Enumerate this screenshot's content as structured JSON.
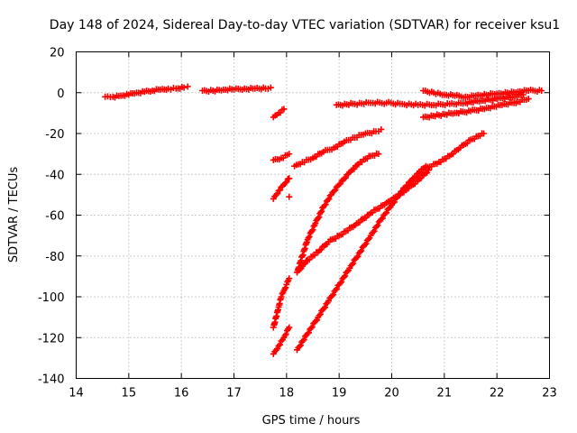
{
  "chart_data": {
    "type": "scatter",
    "title": "Day 148 of 2024, Sidereal Day-to-day VTEC variation (SDTVAR) for receiver ksu1",
    "xlabel": "GPS time / hours",
    "ylabel": "SDTVAR / TECUs",
    "xlim": [
      14,
      23
    ],
    "ylim": [
      -140,
      20
    ],
    "x_ticks": [
      14,
      15,
      16,
      17,
      18,
      19,
      20,
      21,
      22,
      23
    ],
    "x_tick_labels": [
      "14",
      "15",
      "16",
      "17",
      "18",
      "19",
      "20",
      "21",
      "22",
      "23"
    ],
    "y_ticks": [
      -140,
      -120,
      -100,
      -80,
      -60,
      -40,
      -20,
      0,
      20
    ],
    "y_tick_labels": [
      "-140",
      "-120",
      "-100",
      "-80",
      "-60",
      "-40",
      "-20",
      "0",
      "20"
    ],
    "grid": true,
    "legend": "none",
    "marker": "plus",
    "color": "#ff0000",
    "series": [
      {
        "x": [
          14.55,
          14.7,
          14.85,
          15.0,
          15.15,
          15.3,
          15.45,
          15.6,
          15.75,
          15.9,
          16.05,
          16.12
        ],
        "y": [
          -2,
          -2,
          -1.5,
          -1,
          0,
          0.5,
          1,
          1.5,
          2,
          2,
          2.5,
          3
        ]
      },
      {
        "x": [
          16.4,
          16.6,
          16.8,
          17.0,
          17.2,
          17.4,
          17.6,
          17.7
        ],
        "y": [
          1,
          1,
          1.5,
          1.5,
          2,
          2,
          2,
          2.5
        ]
      },
      {
        "x": [
          17.75,
          17.85,
          17.95
        ],
        "y": [
          -12,
          -10,
          -8
        ]
      },
      {
        "x": [
          17.75,
          17.9,
          18.05
        ],
        "y": [
          -33,
          -32,
          -30
        ]
      },
      {
        "x": [
          17.75,
          17.85,
          17.95,
          18.05
        ],
        "y": [
          -52,
          -48,
          -45,
          -42
        ]
      },
      {
        "x": [
          18.05
        ],
        "y": [
          -51
        ]
      },
      {
        "x": [
          17.75,
          17.8,
          17.85,
          17.9,
          17.95,
          18.0,
          18.05
        ],
        "y": [
          -115,
          -110,
          -105,
          -100,
          -97,
          -94,
          -91
        ]
      },
      {
        "x": [
          17.75,
          17.85,
          17.95,
          18.05
        ],
        "y": [
          -128,
          -124,
          -120,
          -115
        ]
      },
      {
        "x": [
          18.15,
          18.3,
          18.5,
          18.7,
          18.9,
          19.1,
          19.3,
          19.5,
          19.7,
          19.8
        ],
        "y": [
          -36,
          -34,
          -32,
          -29,
          -27,
          -24,
          -22,
          -20,
          -19,
          -18
        ]
      },
      {
        "x": [
          18.2,
          18.3,
          18.4,
          18.55,
          18.7,
          18.85,
          19.0,
          19.2,
          19.4,
          19.6,
          19.75
        ],
        "y": [
          -88,
          -80,
          -72,
          -64,
          -56,
          -50,
          -45,
          -39,
          -34,
          -31,
          -30
        ]
      },
      {
        "x": [
          18.2,
          18.4,
          18.6,
          18.8,
          19.0,
          19.3,
          19.6,
          19.9,
          20.2,
          20.5,
          20.7
        ],
        "y": [
          -88,
          -82,
          -78,
          -73,
          -70,
          -65,
          -59,
          -54,
          -49,
          -43,
          -38
        ]
      },
      {
        "x": [
          18.2,
          18.4,
          18.6,
          18.8,
          19.0,
          19.2,
          19.4,
          19.6,
          19.8,
          20.0,
          20.2,
          20.4,
          20.65
        ],
        "y": [
          -126,
          -118,
          -110,
          -102,
          -94,
          -86,
          -78,
          -70,
          -62,
          -55,
          -48,
          -42,
          -36
        ]
      },
      {
        "x": [
          20.65,
          20.9,
          21.1,
          21.3,
          21.5,
          21.75
        ],
        "y": [
          -37,
          -34,
          -31,
          -27,
          -23,
          -20
        ]
      },
      {
        "x": [
          18.95,
          19.3,
          19.6,
          19.9,
          20.2,
          20.5,
          20.8,
          21.1,
          21.4,
          21.7,
          22.0,
          22.3,
          22.5
        ],
        "y": [
          -6,
          -5.5,
          -5,
          -5,
          -5.5,
          -6,
          -6,
          -5.5,
          -5,
          -4,
          -3,
          -2,
          -1
        ]
      },
      {
        "x": [
          20.6,
          20.8,
          21.0,
          21.2,
          21.4,
          21.6,
          21.8,
          22.0,
          22.2,
          22.4,
          22.6,
          22.85
        ],
        "y": [
          1,
          0,
          -1,
          -1.5,
          -2,
          -1.5,
          -1,
          -0.5,
          0,
          0.5,
          1,
          1
        ]
      },
      {
        "x": [
          20.6,
          20.9,
          21.2,
          21.5,
          21.8,
          22.1,
          22.4,
          22.6
        ],
        "y": [
          -12,
          -11,
          -10,
          -9,
          -7.5,
          -6,
          -4.5,
          -3
        ]
      }
    ]
  }
}
